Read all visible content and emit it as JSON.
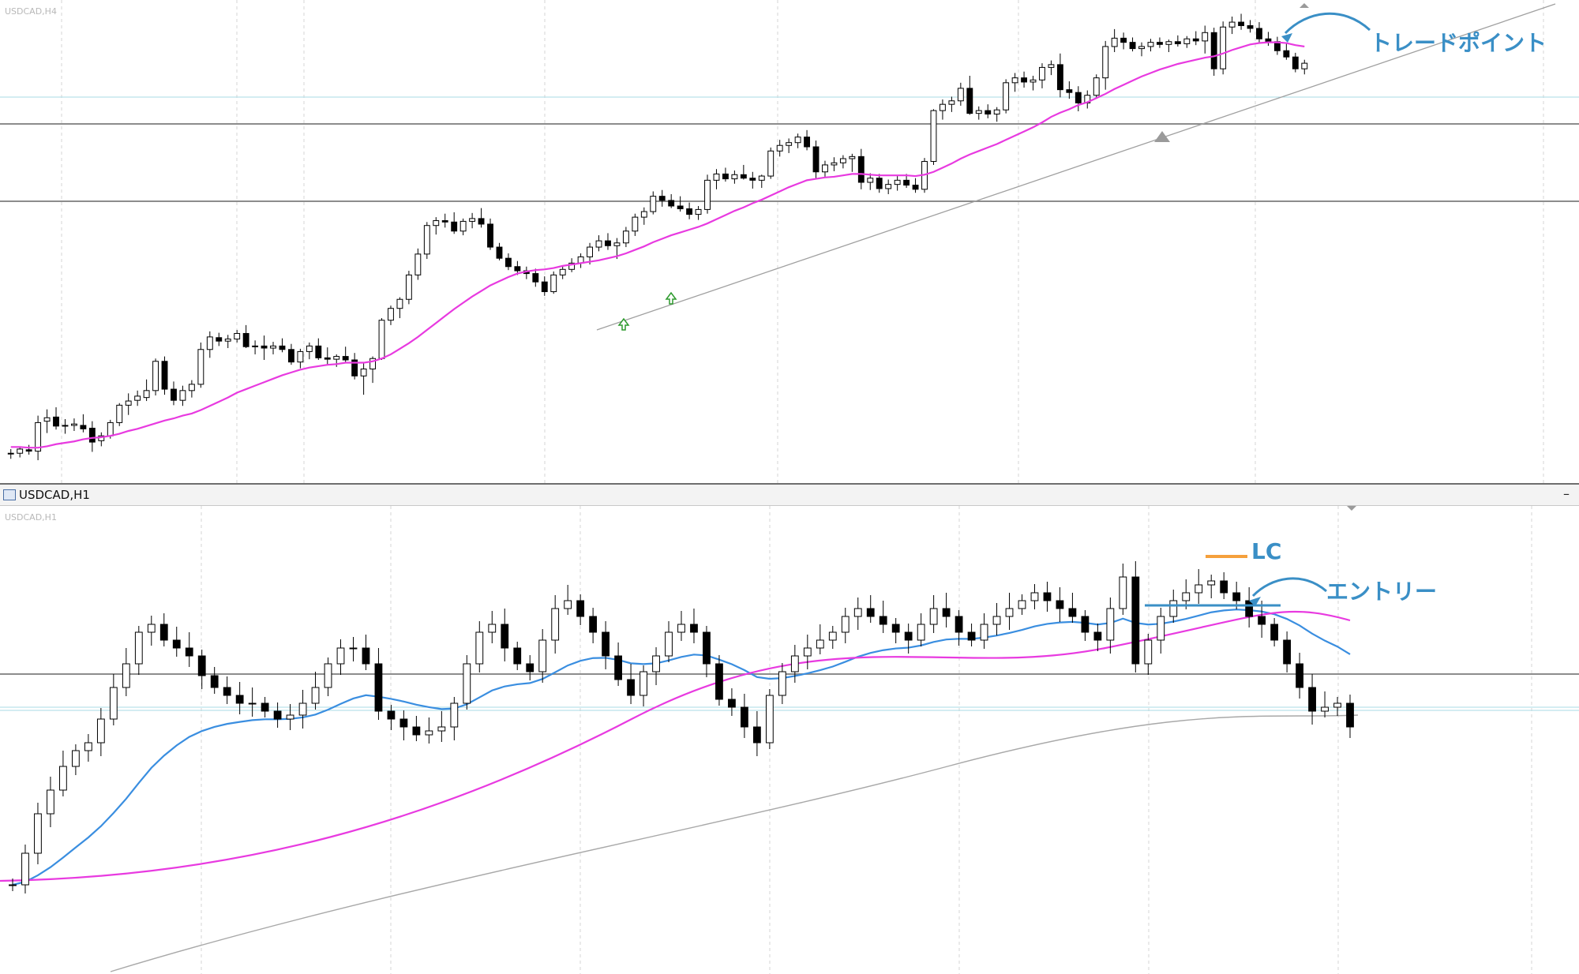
{
  "top_chart": {
    "watermark": "USDCAD,H4",
    "annotation": "トレードポイント"
  },
  "bottom_chart": {
    "window_title": "USDCAD,H1",
    "minimize_label": "–",
    "watermark": "USDCAD,H1",
    "annotation_lc": "LC",
    "annotation_entry": "エントリー"
  },
  "colors": {
    "ma_fast": "#3a8ee0",
    "ma_mid": "#e83ae0",
    "ma_slow": "#a8a8a8",
    "trendline": "#a0a0a0",
    "annotation_text": "#3a8fc6",
    "lc_line": "#f5a03c",
    "grid": "#d6d6d6",
    "level_line": "#8c8c8c",
    "bid_line": "#a9dbe6"
  },
  "chart_data": [
    {
      "type": "candlestick",
      "symbol": "USDCAD",
      "timeframe": "H4",
      "ohlc": [
        [
          1.2605,
          1.2612,
          1.2598,
          1.2606
        ],
        [
          1.2606,
          1.2615,
          1.26,
          1.2612
        ],
        [
          1.2611,
          1.2618,
          1.2604,
          1.2609
        ],
        [
          1.2609,
          1.266,
          1.2596,
          1.265
        ],
        [
          1.2652,
          1.2669,
          1.2635,
          1.2657
        ],
        [
          1.2658,
          1.2672,
          1.264,
          1.2645
        ],
        [
          1.2645,
          1.2655,
          1.2634,
          1.2646
        ],
        [
          1.2646,
          1.2656,
          1.2638,
          1.2648
        ],
        [
          1.2646,
          1.2662,
          1.2636,
          1.2641
        ],
        [
          1.2642,
          1.2652,
          1.2608,
          1.2622
        ],
        [
          1.2624,
          1.2636,
          1.2616,
          1.2631
        ],
        [
          1.2631,
          1.2654,
          1.2627,
          1.265
        ],
        [
          1.265,
          1.2678,
          1.2645,
          1.2675
        ],
        [
          1.2675,
          1.2692,
          1.2661,
          1.2681
        ],
        [
          1.2682,
          1.2696,
          1.2674,
          1.2688
        ],
        [
          1.2686,
          1.2712,
          1.2681,
          1.2696
        ],
        [
          1.2696,
          1.2742,
          1.2689,
          1.2738
        ],
        [
          1.2738,
          1.2745,
          1.269,
          1.2698
        ],
        [
          1.2698,
          1.2709,
          1.2675,
          1.2682
        ],
        [
          1.2682,
          1.2703,
          1.2674,
          1.2696
        ],
        [
          1.2696,
          1.2711,
          1.2686,
          1.2705
        ],
        [
          1.2705,
          1.2765,
          1.27,
          1.2755
        ],
        [
          1.2755,
          1.2781,
          1.2743,
          1.2773
        ],
        [
          1.2772,
          1.2779,
          1.276,
          1.2767
        ],
        [
          1.2767,
          1.2776,
          1.2757,
          1.277
        ],
        [
          1.277,
          1.2783,
          1.2765,
          1.2778
        ],
        [
          1.2778,
          1.279,
          1.2757,
          1.2759
        ],
        [
          1.2759,
          1.2768,
          1.2748,
          1.276
        ],
        [
          1.276,
          1.2775,
          1.274,
          1.2757
        ],
        [
          1.2757,
          1.2766,
          1.2748,
          1.276
        ],
        [
          1.276,
          1.2771,
          1.2751,
          1.2755
        ],
        [
          1.2755,
          1.2763,
          1.2733,
          1.2737
        ],
        [
          1.2737,
          1.2756,
          1.2728,
          1.2752
        ],
        [
          1.2752,
          1.2765,
          1.2741,
          1.276
        ],
        [
          1.276,
          1.2771,
          1.274,
          1.2743
        ],
        [
          1.2743,
          1.2758,
          1.2733,
          1.2741
        ],
        [
          1.2741,
          1.2748,
          1.273,
          1.2745
        ],
        [
          1.2745,
          1.2759,
          1.2735,
          1.274
        ],
        [
          1.274,
          1.275,
          1.2712,
          1.2717
        ],
        [
          1.2717,
          1.2735,
          1.269,
          1.2727
        ],
        [
          1.2727,
          1.2745,
          1.2707,
          1.2742
        ],
        [
          1.2742,
          1.28,
          1.274,
          1.2797
        ],
        [
          1.2797,
          1.2818,
          1.279,
          1.2814
        ],
        [
          1.2814,
          1.283,
          1.28,
          1.2827
        ],
        [
          1.2827,
          1.2868,
          1.282,
          1.2862
        ],
        [
          1.2862,
          1.29,
          1.2855,
          1.2892
        ],
        [
          1.2892,
          1.2938,
          1.2885,
          1.2933
        ],
        [
          1.2933,
          1.2945,
          1.292,
          1.294
        ],
        [
          1.294,
          1.295,
          1.293,
          1.2938
        ],
        [
          1.2938,
          1.2952,
          1.2921,
          1.2925
        ],
        [
          1.2925,
          1.2943,
          1.2919,
          1.2939
        ],
        [
          1.2939,
          1.2951,
          1.2929,
          1.2943
        ],
        [
          1.2943,
          1.2958,
          1.293,
          1.2935
        ],
        [
          1.2935,
          1.2943,
          1.2898,
          1.2902
        ],
        [
          1.2902,
          1.2908,
          1.2883,
          1.2886
        ],
        [
          1.2886,
          1.2893,
          1.2869,
          1.2874
        ],
        [
          1.2874,
          1.2882,
          1.2862,
          1.2868
        ],
        [
          1.2868,
          1.2874,
          1.2856,
          1.2864
        ],
        [
          1.2864,
          1.2871,
          1.2845,
          1.2852
        ],
        [
          1.2852,
          1.286,
          1.2832,
          1.2838
        ],
        [
          1.2838,
          1.2867,
          1.2835,
          1.2862
        ],
        [
          1.2862,
          1.2875,
          1.2856,
          1.287
        ],
        [
          1.287,
          1.2886,
          1.2866,
          1.2879
        ],
        [
          1.2879,
          1.2893,
          1.2872,
          1.2888
        ],
        [
          1.2888,
          1.2908,
          1.2877,
          1.2902
        ],
        [
          1.2902,
          1.2919,
          1.2896,
          1.2911
        ],
        [
          1.2911,
          1.2922,
          1.2898,
          1.2904
        ],
        [
          1.2904,
          1.2915,
          1.2885,
          1.2908
        ],
        [
          1.2908,
          1.2931,
          1.2902,
          1.2925
        ],
        [
          1.2925,
          1.295,
          1.2918,
          1.2945
        ],
        [
          1.2945,
          1.2959,
          1.2934,
          1.2953
        ],
        [
          1.2953,
          1.2982,
          1.2949,
          1.2975
        ],
        [
          1.2975,
          1.2984,
          1.296,
          1.2969
        ],
        [
          1.2969,
          1.2978,
          1.2958,
          1.2961
        ],
        [
          1.2961,
          1.2975,
          1.2953,
          1.2957
        ],
        [
          1.2957,
          1.2966,
          1.2942,
          1.2949
        ],
        [
          1.2949,
          1.2961,
          1.2941,
          1.2956
        ],
        [
          1.2956,
          1.3006,
          1.295,
          1.2998
        ],
        [
          1.2998,
          1.3014,
          1.2985,
          1.3007
        ],
        [
          1.3007,
          1.3016,
          1.2996,
          1.3
        ],
        [
          1.3,
          1.3012,
          1.2993,
          1.3006
        ],
        [
          1.3006,
          1.302,
          1.2999,
          1.3001
        ],
        [
          1.3001,
          1.301,
          1.2986,
          1.2998
        ],
        [
          1.2998,
          1.3006,
          1.2987,
          1.3004
        ],
        [
          1.3004,
          1.3045,
          1.3,
          1.304
        ],
        [
          1.304,
          1.3056,
          1.3032,
          1.3048
        ],
        [
          1.3048,
          1.3058,
          1.3037,
          1.3052
        ],
        [
          1.3052,
          1.3065,
          1.3044,
          1.306
        ],
        [
          1.306,
          1.307,
          1.3041,
          1.3046
        ],
        [
          1.3046,
          1.3055,
          1.3,
          1.301
        ],
        [
          1.301,
          1.3026,
          1.3003,
          1.302
        ],
        [
          1.302,
          1.3031,
          1.3011,
          1.3023
        ],
        [
          1.3023,
          1.3034,
          1.3015,
          1.3029
        ],
        [
          1.3029,
          1.3036,
          1.301,
          1.3032
        ],
        [
          1.3032,
          1.3043,
          1.2985,
          1.2995
        ],
        [
          1.2995,
          1.3008,
          1.2984,
          1.3001
        ],
        [
          1.3001,
          1.3007,
          1.298,
          1.2986
        ],
        [
          1.2986,
          1.2999,
          1.2978,
          1.2992
        ],
        [
          1.2992,
          1.3004,
          1.2983,
          1.2998
        ],
        [
          1.2998,
          1.3007,
          1.2987,
          1.2991
        ],
        [
          1.2991,
          1.3001,
          1.298,
          1.2985
        ],
        [
          1.2985,
          1.303,
          1.298,
          1.3025
        ],
        [
          1.3025,
          1.31,
          1.302,
          1.3098
        ],
        [
          1.3098,
          1.3114,
          1.3085,
          1.3107
        ],
        [
          1.3107,
          1.3118,
          1.3096,
          1.3112
        ],
        [
          1.3112,
          1.3138,
          1.3105,
          1.313
        ],
        [
          1.313,
          1.3148,
          1.3092,
          1.3094
        ],
        [
          1.3094,
          1.3104,
          1.3085,
          1.3098
        ],
        [
          1.3098,
          1.3107,
          1.3087,
          1.3093
        ],
        [
          1.3093,
          1.3103,
          1.3082,
          1.3099
        ],
        [
          1.3099,
          1.3143,
          1.3094,
          1.3138
        ],
        [
          1.3138,
          1.3152,
          1.3125,
          1.3145
        ],
        [
          1.3145,
          1.3154,
          1.3131,
          1.3139
        ],
        [
          1.3139,
          1.3148,
          1.3127,
          1.3142
        ],
        [
          1.3142,
          1.3166,
          1.313,
          1.316
        ],
        [
          1.316,
          1.317,
          1.3149,
          1.3164
        ],
        [
          1.3164,
          1.318,
          1.3117,
          1.3128
        ],
        [
          1.3128,
          1.314,
          1.3115,
          1.3124
        ],
        [
          1.3124,
          1.3133,
          1.3097,
          1.3109
        ],
        [
          1.3109,
          1.3127,
          1.3101,
          1.312
        ],
        [
          1.312,
          1.315,
          1.3115,
          1.3145
        ],
        [
          1.3145,
          1.3198,
          1.3128,
          1.319
        ],
        [
          1.319,
          1.3215,
          1.3182,
          1.3202
        ],
        [
          1.3202,
          1.321,
          1.3186,
          1.3196
        ],
        [
          1.3196,
          1.3203,
          1.3183,
          1.3187
        ],
        [
          1.3187,
          1.3196,
          1.3176,
          1.319
        ],
        [
          1.319,
          1.3201,
          1.3183,
          1.3196
        ],
        [
          1.3196,
          1.3203,
          1.3188,
          1.3193
        ],
        [
          1.3193,
          1.32,
          1.3182,
          1.3197
        ],
        [
          1.3197,
          1.3206,
          1.319,
          1.3194
        ],
        [
          1.3194,
          1.3205,
          1.3188,
          1.3201
        ],
        [
          1.3201,
          1.3212,
          1.3192,
          1.3198
        ],
        [
          1.3198,
          1.322,
          1.318,
          1.321
        ],
        [
          1.321,
          1.3217,
          1.3148,
          1.3158
        ],
        [
          1.3158,
          1.3226,
          1.315,
          1.3218
        ],
        [
          1.3218,
          1.3233,
          1.3208,
          1.3225
        ],
        [
          1.3225,
          1.3237,
          1.3214,
          1.322
        ],
        [
          1.322,
          1.3228,
          1.321,
          1.3216
        ],
        [
          1.3216,
          1.3225,
          1.3196,
          1.3201
        ],
        [
          1.3201,
          1.3211,
          1.3191,
          1.3197
        ],
        [
          1.3197,
          1.3204,
          1.3178,
          1.3184
        ],
        [
          1.3184,
          1.3194,
          1.3171,
          1.3175
        ],
        [
          1.3175,
          1.3181,
          1.3153,
          1.3158
        ],
        [
          1.3158,
          1.3171,
          1.315,
          1.3166
        ]
      ],
      "ma": [
        {
          "period": 20,
          "color": "magenta",
          "values": [
            1.2615,
            1.2615,
            1.2614,
            1.2614,
            1.2616,
            1.2619,
            1.2621,
            1.2623,
            1.2626,
            1.2628,
            1.2629,
            1.2631,
            1.2634,
            1.2638,
            1.2641,
            1.2645,
            1.2649,
            1.2653,
            1.2656,
            1.266,
            1.2663,
            1.2668,
            1.2674,
            1.268,
            1.2686,
            1.2693,
            1.2698,
            1.2703,
            1.2708,
            1.2713,
            1.2718,
            1.2722,
            1.2726,
            1.2729,
            1.2731,
            1.2733,
            1.2734,
            1.2736,
            1.2736,
            1.2736,
            1.2738,
            1.2742,
            1.2748,
            1.2756,
            1.2764,
            1.2773,
            1.2783,
            1.2793,
            1.2803,
            1.2813,
            1.2822,
            1.2831,
            1.2839,
            1.2847,
            1.2853,
            1.2859,
            1.2864,
            1.2867,
            1.2869,
            1.287,
            1.2872,
            1.2875,
            1.2877,
            1.2879,
            1.2881,
            1.2883,
            1.2886,
            1.2889,
            1.2893,
            1.2898,
            1.2903,
            1.2909,
            1.2914,
            1.2919,
            1.2923,
            1.2927,
            1.2931,
            1.2936,
            1.2942,
            1.2948,
            1.2954,
            1.2959,
            1.2965,
            1.297,
            1.2976,
            1.2982,
            1.2988,
            1.2993,
            1.2998,
            1.3,
            1.3002,
            1.3003,
            1.3005,
            1.3007,
            1.3007,
            1.3006,
            1.3005,
            1.3005,
            1.3005,
            1.3005,
            1.3004,
            1.3006,
            1.301,
            1.3016,
            1.3022,
            1.3029,
            1.3035,
            1.304,
            1.3045,
            1.305,
            1.3056,
            1.3062,
            1.3068,
            1.3074,
            1.3081,
            1.3089,
            1.3095,
            1.31,
            1.3106,
            1.311,
            1.3116,
            1.3122,
            1.3129,
            1.3135,
            1.3141,
            1.3147,
            1.3152,
            1.3157,
            1.3161,
            1.3165,
            1.3168,
            1.3171,
            1.3174,
            1.3176,
            1.318,
            1.3185,
            1.3189,
            1.3193,
            1.3195,
            1.3196,
            1.3196,
            1.3195,
            1.3192,
            1.319
          ]
        }
      ],
      "trendline": {
        "from": [
          1.286
        ],
        "to": [
          1.324
        ]
      },
      "horizontal_levels": [
        1.3096,
        1.2998,
        1.313
      ]
    },
    {
      "type": "candlestick",
      "symbol": "USDCAD",
      "timeframe": "H1",
      "ma": [
        {
          "name": "",
          "color": "blue"
        },
        {
          "name": "",
          "color": "magenta"
        },
        {
          "name": "",
          "color": "gray"
        }
      ],
      "horizontal_levels": [
        1.3195,
        1.3168,
        1.3166
      ],
      "annotations": [
        "LC",
        "エントリー"
      ]
    }
  ]
}
